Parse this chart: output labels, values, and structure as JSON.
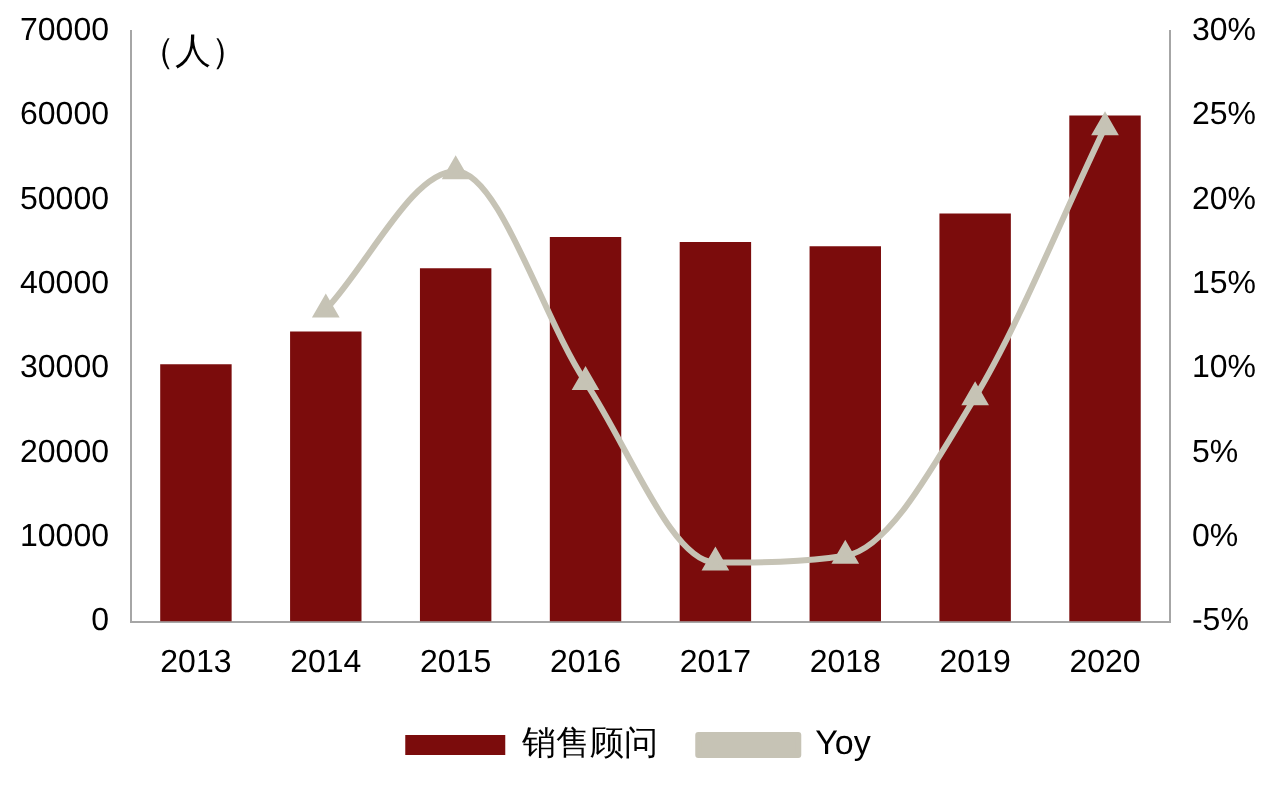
{
  "chart_data": {
    "type": "bar",
    "ylabel": "（人）",
    "categories": [
      "2013",
      "2014",
      "2015",
      "2016",
      "2017",
      "2018",
      "2019",
      "2020"
    ],
    "series": [
      {
        "name": "销售顾问",
        "color": "#7b0c0c",
        "values": [
          30500,
          34400,
          41900,
          45600,
          45000,
          44500,
          48400,
          60000
        ]
      },
      {
        "name": "Yoy",
        "type": "line",
        "axis": "y2",
        "color": "#c6c3b5",
        "marker": "triangle",
        "values": [
          null,
          13.5,
          21.7,
          9.2,
          -1.5,
          -1.1,
          8.3,
          24.3
        ]
      }
    ],
    "ylim": [
      0,
      70000
    ],
    "yticks": [
      0,
      10000,
      20000,
      30000,
      40000,
      50000,
      60000,
      70000
    ],
    "y2lim": [
      -5,
      30
    ],
    "y2ticks": [
      {
        "value": -5,
        "label": "-5%"
      },
      {
        "value": 0,
        "label": "0%"
      },
      {
        "value": 5,
        "label": "5%"
      },
      {
        "value": 10,
        "label": "10%"
      },
      {
        "value": 15,
        "label": "15%"
      },
      {
        "value": 20,
        "label": "20%"
      },
      {
        "value": 25,
        "label": "25%"
      },
      {
        "value": 30,
        "label": "30%"
      }
    ],
    "grid": false,
    "legend": "bottom"
  }
}
